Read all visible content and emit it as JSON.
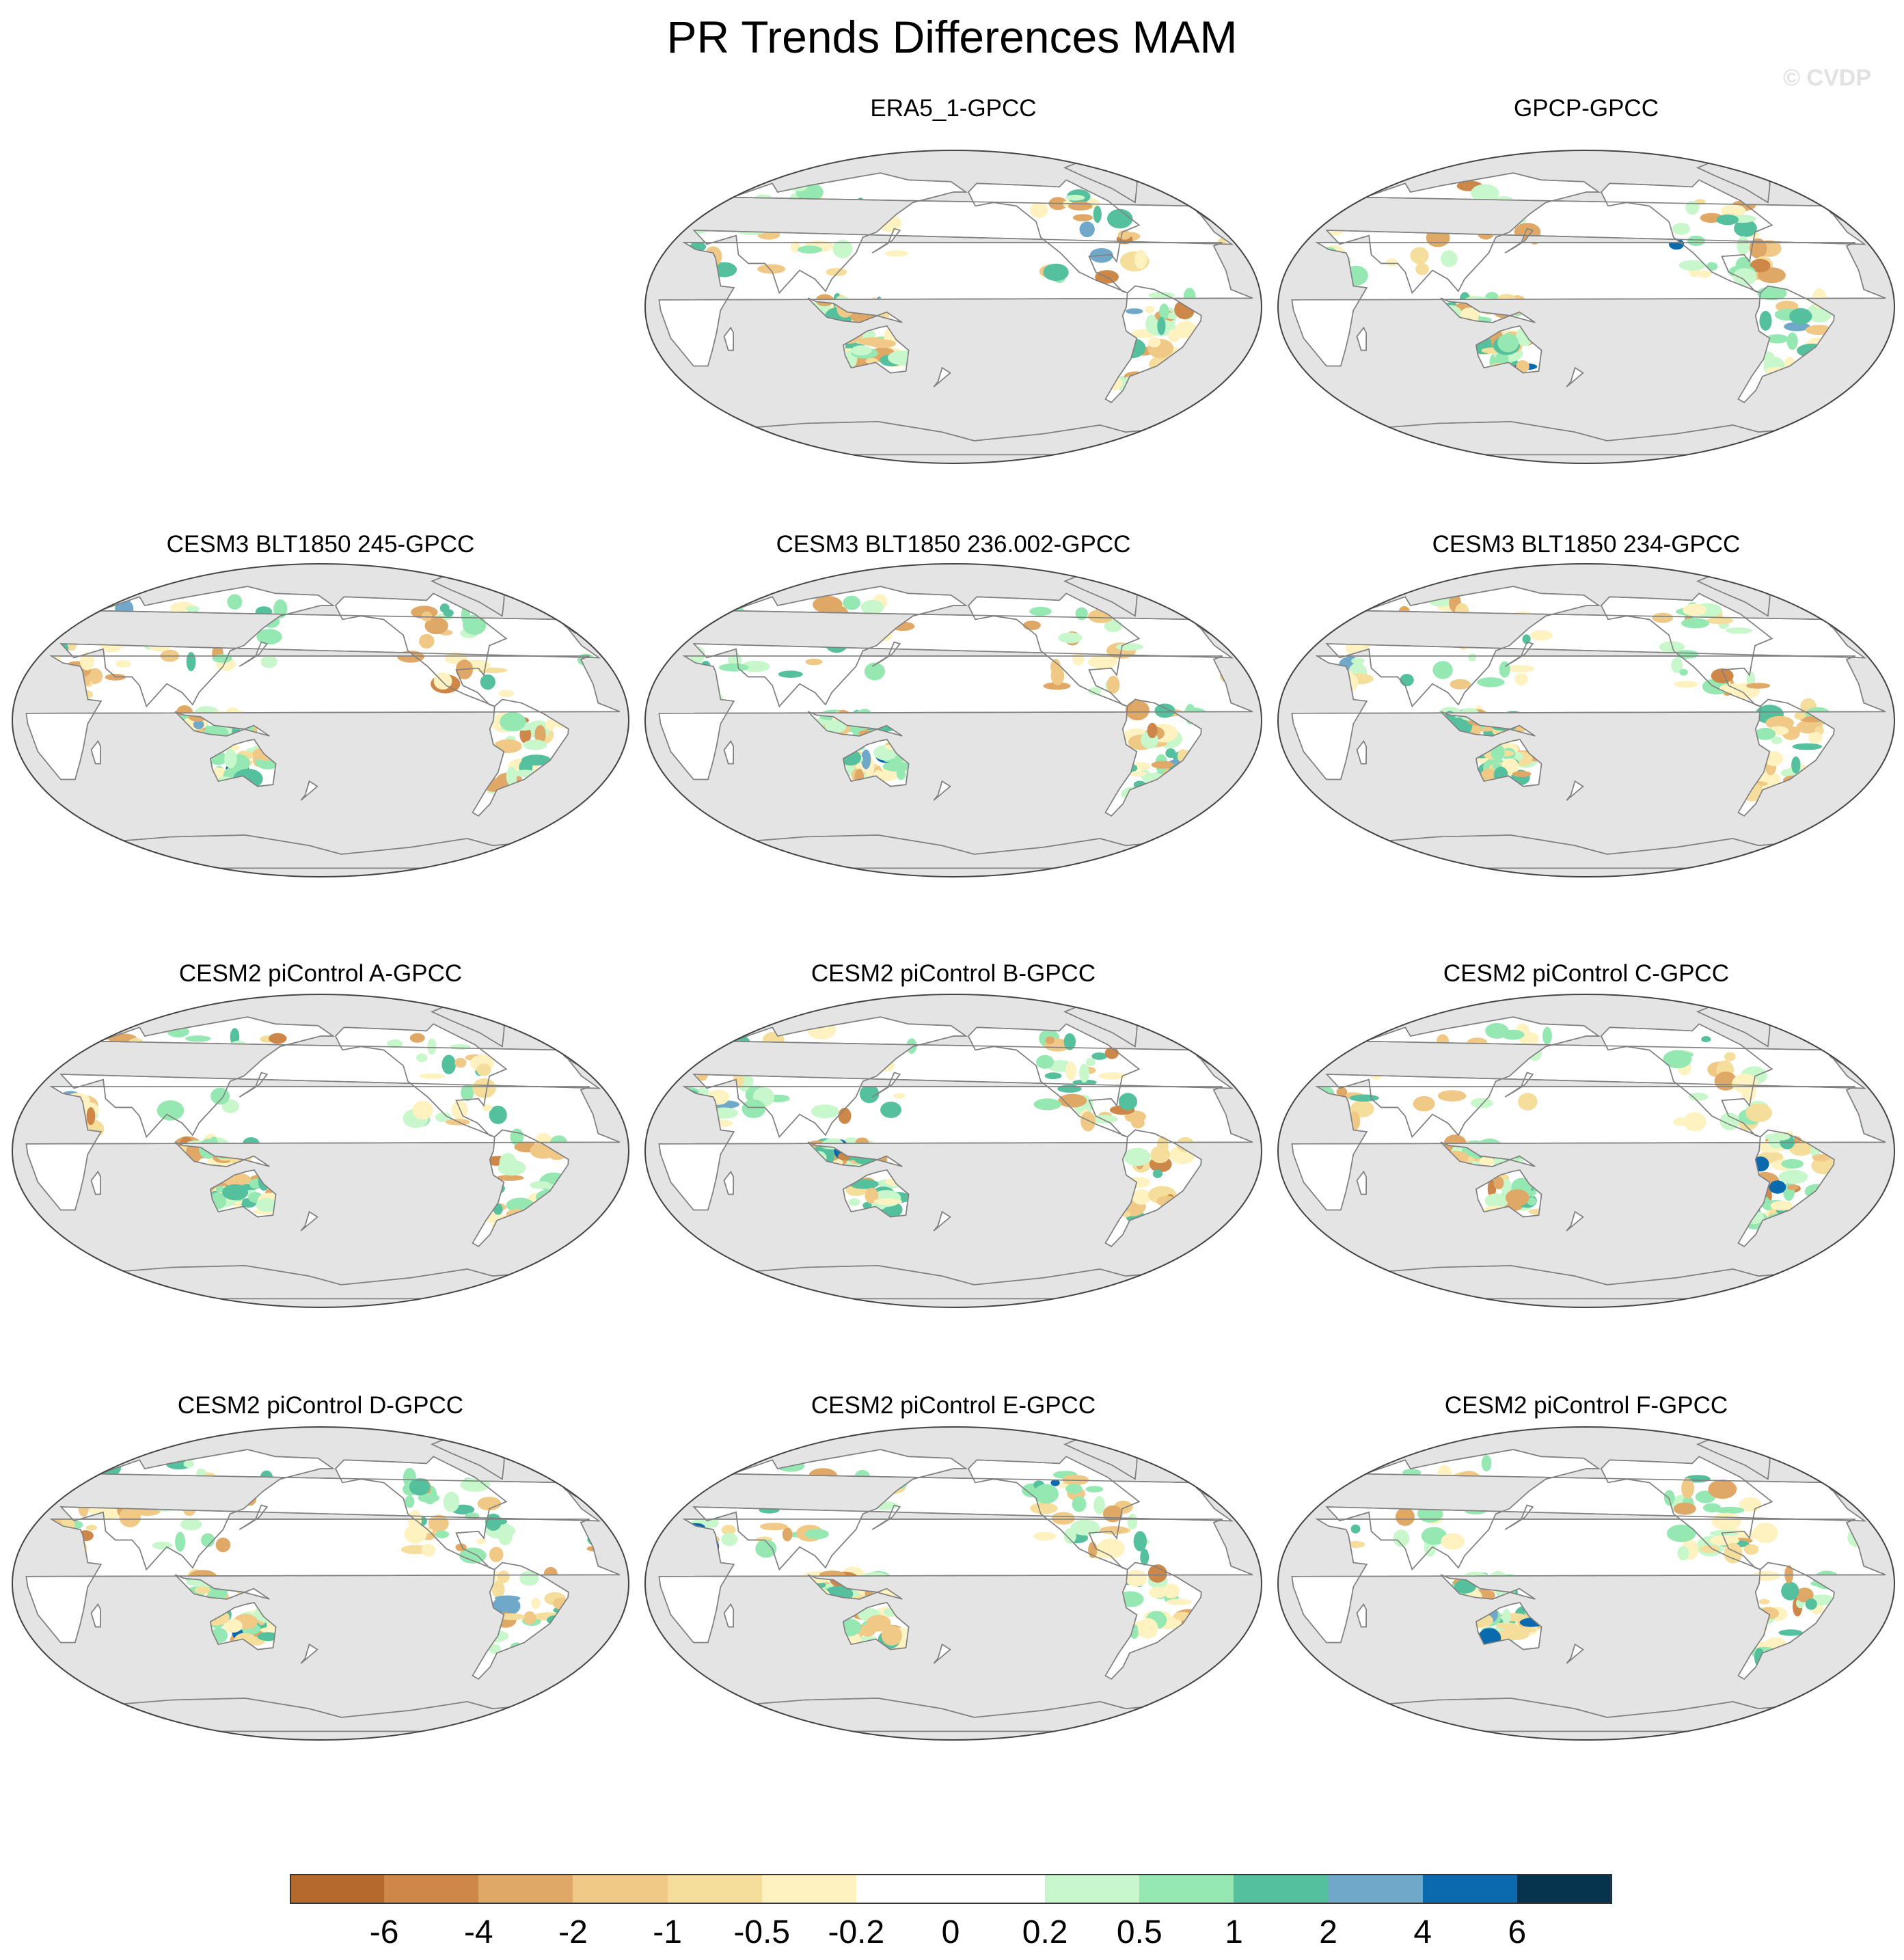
{
  "title": "PR Trends Differences MAM",
  "watermark": "© CVDP",
  "chart_data": {
    "type": "heatmap",
    "title": "PR Trends Differences MAM",
    "projection": "robinson",
    "ocean_masked": true,
    "panels": [
      {
        "name": "ERA5_1-GPCC",
        "row": 0,
        "col": 1
      },
      {
        "name": "GPCP-GPCC",
        "row": 0,
        "col": 2
      },
      {
        "name": "CESM3 BLT1850 245-GPCC",
        "row": 1,
        "col": 0
      },
      {
        "name": "CESM3 BLT1850 236.002-GPCC",
        "row": 1,
        "col": 1
      },
      {
        "name": "CESM3 BLT1850 234-GPCC",
        "row": 1,
        "col": 2
      },
      {
        "name": "CESM2 piControl A-GPCC",
        "row": 2,
        "col": 0
      },
      {
        "name": "CESM2 piControl B-GPCC",
        "row": 2,
        "col": 1
      },
      {
        "name": "CESM2 piControl C-GPCC",
        "row": 2,
        "col": 2
      },
      {
        "name": "CESM2 piControl D-GPCC",
        "row": 3,
        "col": 0
      },
      {
        "name": "CESM2 piControl E-GPCC",
        "row": 3,
        "col": 1
      },
      {
        "name": "CESM2 piControl F-GPCC",
        "row": 3,
        "col": 2
      }
    ],
    "colorbar": {
      "levels": [
        "-6",
        "-4",
        "-2",
        "-1",
        "-0.5",
        "-0.2",
        "0",
        "0.2",
        "0.5",
        "1",
        "2",
        "4",
        "6"
      ],
      "colors": [
        "#b5692d",
        "#cc8749",
        "#e0a866",
        "#f0c986",
        "#f5dd9c",
        "#fef3c0",
        "#ffffff",
        "#ffffff",
        "#c8f7cb",
        "#96e8b3",
        "#55c09e",
        "#6fa8c8",
        "#0b6aae",
        "#06344f"
      ]
    },
    "colors": {
      "ocean": "#e4e4e4",
      "land_neutral": "#ffffff",
      "coastline": "#808080"
    }
  }
}
